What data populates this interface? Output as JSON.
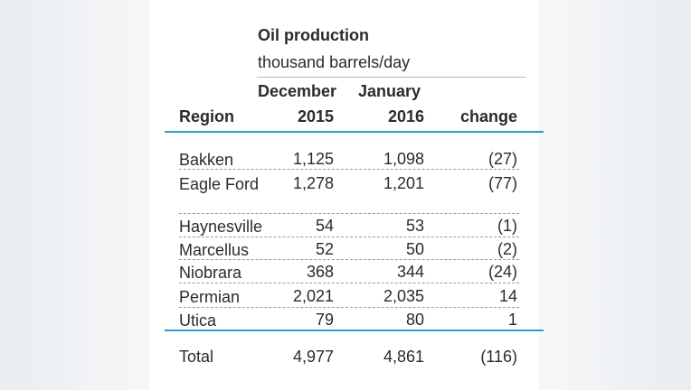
{
  "chart_data": {
    "type": "table",
    "title": "Oil production",
    "subtitle": "thousand barrels/day",
    "columns": {
      "region": "Region",
      "dec_top": "December",
      "dec_bottom": "2015",
      "jan_top": "January",
      "jan_bottom": "2016",
      "change": "change"
    },
    "rows": [
      {
        "region": "Bakken",
        "dec2015": "1,125",
        "jan2016": "1,098",
        "change": "(27)"
      },
      {
        "region": "Eagle Ford",
        "dec2015": "1,278",
        "jan2016": "1,201",
        "change": "(77)"
      },
      {
        "region": "Haynesville",
        "dec2015": "54",
        "jan2016": "53",
        "change": "(1)"
      },
      {
        "region": "Marcellus",
        "dec2015": "52",
        "jan2016": "50",
        "change": "(2)"
      },
      {
        "region": "Niobrara",
        "dec2015": "368",
        "jan2016": "344",
        "change": "(24)"
      },
      {
        "region": "Permian",
        "dec2015": "2,021",
        "jan2016": "2,035",
        "change": "14"
      },
      {
        "region": "Utica",
        "dec2015": "79",
        "jan2016": "80",
        "change": "1"
      }
    ],
    "total": {
      "region": "Total",
      "dec2015": "4,977",
      "jan2016": "4,861",
      "change": "(116)"
    },
    "accent_color": "#2e9bc7"
  }
}
